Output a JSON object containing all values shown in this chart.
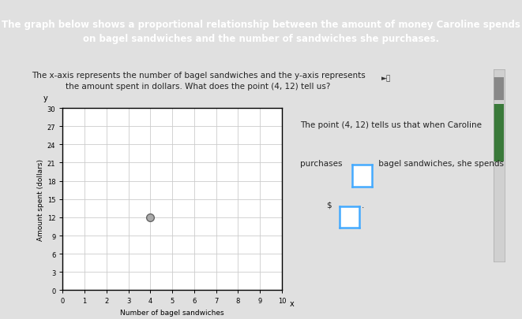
{
  "title_banner": "The graph below shows a proportional relationship between the amount of money Caroline spends\non bagel sandwiches and the number of sandwiches she purchases.",
  "title_banner_bg": "#6b4fa0",
  "title_banner_fg": "#ffffff",
  "subtitle": "The x-axis represents the number of bagel sandwiches and the y-axis represents\nthe amount spent in dollars. What does the point (4, 12) tell us?",
  "subtitle_fg": "#222222",
  "background_color": "#e0e0e0",
  "plot_bg": "#ffffff",
  "xlabel": "Number of bagel sandwiches",
  "ylabel": "Amount spent (dollars)",
  "xlim": [
    0,
    10
  ],
  "ylim": [
    0,
    30
  ],
  "xticks": [
    0,
    1,
    2,
    3,
    4,
    5,
    6,
    7,
    8,
    9,
    10
  ],
  "yticks": [
    0,
    3,
    6,
    9,
    12,
    15,
    18,
    21,
    24,
    27,
    30
  ],
  "point_x": 4,
  "point_y": 12,
  "point_color": "#888888",
  "grid_color": "#cccccc",
  "axis_color": "#000000",
  "side_text_line1": "The point (4, 12) tells us that when Caroline",
  "side_text_line2": "purchases",
  "side_text_line3": "bagel sandwiches, she spends",
  "side_text_line4": "$",
  "box_border": "#44aaff",
  "box_fill": "#ffffff",
  "scrollbar_bg": "#d0d0d0",
  "scrollbar_thumb": "#555555",
  "scrollbar_light": "#aaaaaa"
}
